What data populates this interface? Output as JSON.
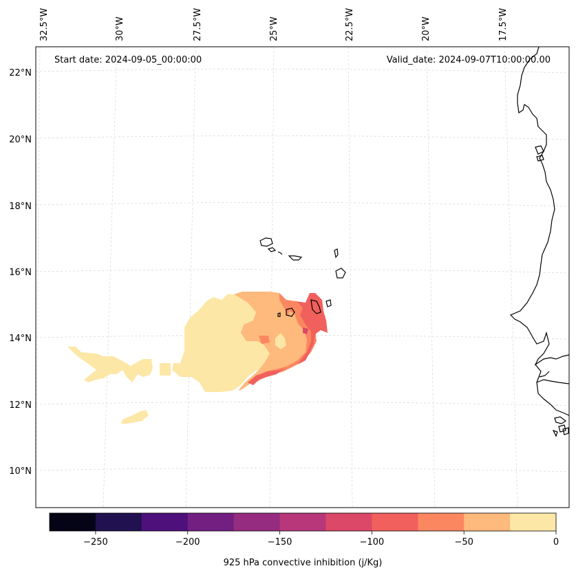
{
  "map": {
    "start_label": "Start date: 2024-09-05_00:00:00",
    "valid_label": "Valid_date: 2024-09-07T10:00:00.00",
    "lon_labels": [
      "32.5°W",
      "30°W",
      "27.5°W",
      "25°W",
      "22.5°W",
      "20°W",
      "17.5°W"
    ],
    "lat_labels": [
      "22°N",
      "20°N",
      "18°N",
      "16°N",
      "14°N",
      "12°N",
      "10°N"
    ],
    "gridlines": true,
    "colors": {
      "coastline": "#000000",
      "gridline": "#cccccc"
    }
  },
  "colorbar": {
    "label": "925 hPa convective inhibition (j/Kg)",
    "ticks": [
      "−250",
      "−200",
      "−150",
      "−100",
      "−50",
      "0"
    ],
    "tick_values": [
      -250,
      -200,
      -150,
      -100,
      -50,
      0
    ],
    "range": [
      -275,
      0
    ],
    "levels": [
      -275,
      -250,
      -225,
      -200,
      -175,
      -150,
      -125,
      -100,
      -75,
      -50,
      -25,
      0
    ],
    "colors": [
      "#050416",
      "#221150",
      "#4e117b",
      "#731f82",
      "#952c80",
      "#b8377a",
      "#dc4868",
      "#f1605d",
      "#fb8761",
      "#feb97c",
      "#fde7a6"
    ]
  }
}
